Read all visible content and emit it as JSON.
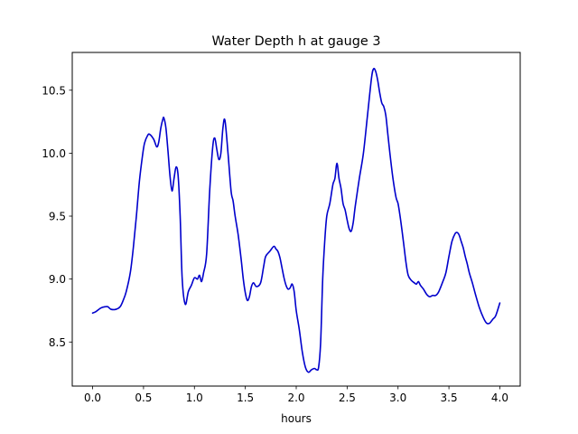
{
  "chart_data": {
    "type": "line",
    "title": "Water Depth h at gauge 3",
    "xlabel": "hours",
    "ylabel": "",
    "xlim": [
      -0.2,
      4.2
    ],
    "ylim": [
      8.15,
      10.8
    ],
    "xticks": [
      0.0,
      0.5,
      1.0,
      1.5,
      2.0,
      2.5,
      3.0,
      3.5,
      4.0
    ],
    "xtick_labels": [
      "0.0",
      "0.5",
      "1.0",
      "1.5",
      "2.0",
      "2.5",
      "3.0",
      "3.5",
      "4.0"
    ],
    "yticks": [
      8.5,
      9.0,
      9.5,
      10.0,
      10.5
    ],
    "ytick_labels": [
      "8.5",
      "9.0",
      "9.5",
      "10.0",
      "10.5"
    ],
    "grid": false,
    "legend": "none",
    "line_color": "#0000cc",
    "series": [
      {
        "name": "",
        "x": [
          0.0,
          0.03,
          0.08,
          0.12,
          0.15,
          0.18,
          0.23,
          0.27,
          0.3,
          0.33,
          0.37,
          0.4,
          0.43,
          0.46,
          0.49,
          0.51,
          0.54,
          0.56,
          0.6,
          0.63,
          0.65,
          0.67,
          0.69,
          0.7,
          0.72,
          0.74,
          0.76,
          0.78,
          0.8,
          0.82,
          0.84,
          0.86,
          0.88,
          0.91,
          0.94,
          0.97,
          1.0,
          1.03,
          1.05,
          1.07,
          1.09,
          1.12,
          1.15,
          1.18,
          1.2,
          1.22,
          1.24,
          1.26,
          1.28,
          1.3,
          1.33,
          1.36,
          1.38,
          1.4,
          1.43,
          1.46,
          1.48,
          1.5,
          1.52,
          1.54,
          1.56,
          1.58,
          1.61,
          1.65,
          1.68,
          1.7,
          1.74,
          1.78,
          1.8,
          1.82,
          1.84,
          1.86,
          1.88,
          1.9,
          1.92,
          1.94,
          1.96,
          1.98,
          2.0,
          2.03,
          2.06,
          2.09,
          2.12,
          2.15,
          2.18,
          2.2,
          2.22,
          2.24,
          2.26,
          2.28,
          2.3,
          2.33,
          2.36,
          2.38,
          2.4,
          2.42,
          2.44,
          2.46,
          2.48,
          2.5,
          2.52,
          2.54,
          2.56,
          2.58,
          2.62,
          2.66,
          2.7,
          2.74,
          2.76,
          2.78,
          2.8,
          2.82,
          2.84,
          2.86,
          2.88,
          2.9,
          2.92,
          2.95,
          2.98,
          3.0,
          3.02,
          3.04,
          3.06,
          3.08,
          3.1,
          3.13,
          3.16,
          3.18,
          3.2,
          3.22,
          3.25,
          3.28,
          3.31,
          3.34,
          3.37,
          3.4,
          3.44,
          3.47,
          3.5,
          3.53,
          3.56,
          3.58,
          3.6,
          3.62,
          3.64,
          3.66,
          3.68,
          3.7,
          3.73,
          3.76,
          3.8,
          3.84,
          3.87,
          3.9,
          3.93,
          3.96,
          4.0
        ],
        "values": [
          8.73,
          8.74,
          8.77,
          8.78,
          8.78,
          8.76,
          8.76,
          8.78,
          8.83,
          8.9,
          9.05,
          9.25,
          9.5,
          9.78,
          9.98,
          10.08,
          10.14,
          10.15,
          10.11,
          10.05,
          10.09,
          10.2,
          10.27,
          10.28,
          10.2,
          10.02,
          9.82,
          9.7,
          9.8,
          9.89,
          9.82,
          9.5,
          9.0,
          8.8,
          8.9,
          8.95,
          9.01,
          9.0,
          9.03,
          8.98,
          9.05,
          9.2,
          9.7,
          10.05,
          10.12,
          10.03,
          9.95,
          10.0,
          10.2,
          10.26,
          10.0,
          9.7,
          9.62,
          9.5,
          9.35,
          9.15,
          9.0,
          8.89,
          8.83,
          8.86,
          8.94,
          8.97,
          8.94,
          8.97,
          9.1,
          9.18,
          9.22,
          9.26,
          9.24,
          9.22,
          9.17,
          9.09,
          9.01,
          8.95,
          8.92,
          8.93,
          8.96,
          8.9,
          8.75,
          8.6,
          8.42,
          8.3,
          8.26,
          8.28,
          8.29,
          8.28,
          8.3,
          8.5,
          9.0,
          9.3,
          9.5,
          9.6,
          9.75,
          9.8,
          9.92,
          9.8,
          9.72,
          9.6,
          9.55,
          9.47,
          9.4,
          9.38,
          9.45,
          9.58,
          9.8,
          10.0,
          10.3,
          10.6,
          10.67,
          10.65,
          10.58,
          10.48,
          10.4,
          10.37,
          10.3,
          10.15,
          10.0,
          9.8,
          9.65,
          9.6,
          9.5,
          9.38,
          9.25,
          9.12,
          9.03,
          8.99,
          8.97,
          8.96,
          8.98,
          8.95,
          8.92,
          8.88,
          8.86,
          8.87,
          8.87,
          8.9,
          8.98,
          9.05,
          9.18,
          9.3,
          9.36,
          9.37,
          9.35,
          9.3,
          9.25,
          9.18,
          9.12,
          9.05,
          8.97,
          8.88,
          8.77,
          8.69,
          8.65,
          8.65,
          8.68,
          8.71,
          8.81
        ]
      }
    ]
  }
}
